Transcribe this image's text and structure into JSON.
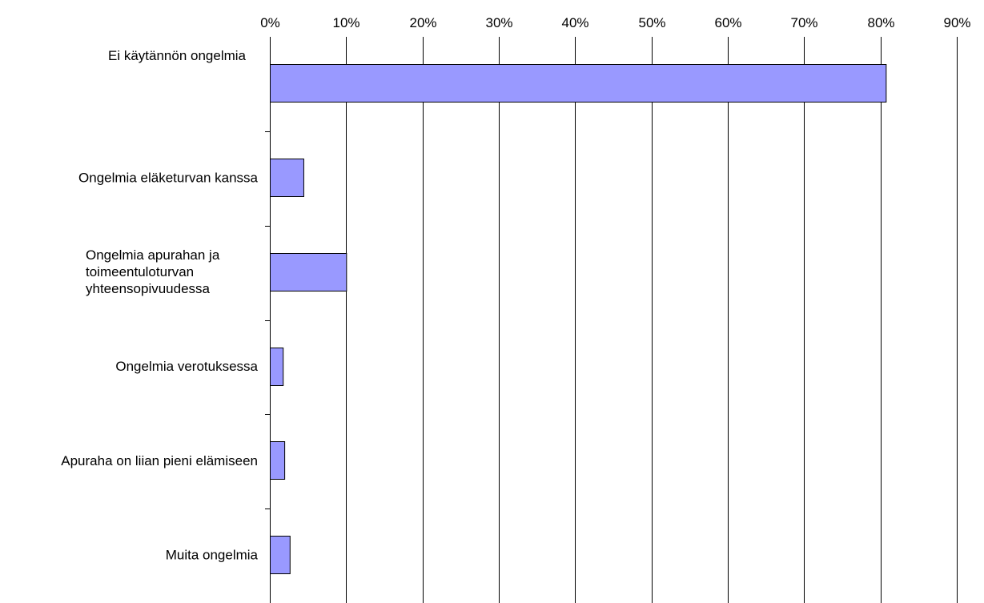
{
  "chart_data": {
    "type": "bar",
    "orientation": "horizontal",
    "title": "",
    "xlabel": "",
    "ylabel": "",
    "xlim": [
      0,
      90
    ],
    "x_ticks": [
      "0%",
      "10%",
      "20%",
      "30%",
      "40%",
      "50%",
      "60%",
      "70%",
      "80%",
      "90%"
    ],
    "x_axis_position": "top",
    "grid": true,
    "legend": "none",
    "bar_color": "#9999ff",
    "bar_edge_color": "#000000",
    "categories": [
      "Ei käytännön ongelmia",
      "Ongelmia eläketurvan kanssa",
      "Ongelmia apurahan ja toimeentuloturvan yhteensopivuudessa",
      "Ongelmia verotuksessa",
      "Apuraha on liian pieni elämiseen",
      "Muita ongelmia"
    ],
    "category_label_lines": [
      [
        "Ei käytännön ongelmia"
      ],
      [
        "Ongelmia eläketurvan kanssa"
      ],
      [
        "Ongelmia apurahan ja",
        "toimeentuloturvan",
        "yhteensopivuudessa"
      ],
      [
        "Ongelmia verotuksessa"
      ],
      [
        "Apuraha on liian pieni elämiseen"
      ],
      [
        "Muita ongelmia"
      ]
    ],
    "values": [
      80.7,
      4.4,
      10.0,
      1.7,
      1.9,
      2.6
    ],
    "unit": "%"
  }
}
